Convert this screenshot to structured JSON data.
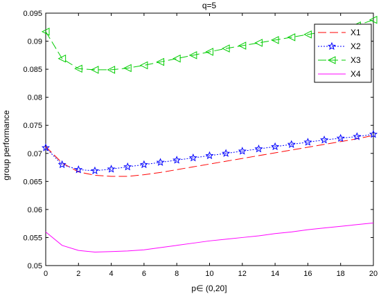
{
  "chart_data": {
    "type": "line",
    "title": "q=5",
    "xlabel": "p∈ (0,20]",
    "ylabel": "group performance",
    "xlim": [
      0,
      20
    ],
    "ylim": [
      0.05,
      0.095
    ],
    "xticks": [
      "0",
      "2",
      "4",
      "6",
      "8",
      "10",
      "12",
      "14",
      "16",
      "18",
      "20"
    ],
    "yticks": [
      "0.05",
      "0.055",
      "0.06",
      "0.065",
      "0.07",
      "0.075",
      "0.08",
      "0.085",
      "0.09",
      "0.095"
    ],
    "grid": false,
    "legend_position": "top-right",
    "x": [
      0,
      1,
      2,
      3,
      4,
      5,
      6,
      7,
      8,
      9,
      10,
      11,
      12,
      13,
      14,
      15,
      16,
      17,
      18,
      19,
      20
    ],
    "series": [
      {
        "name": "X1",
        "color": "#ff0000",
        "line_style": "dashed",
        "marker": "none",
        "values": [
          0.0712,
          0.0683,
          0.0667,
          0.0661,
          0.0659,
          0.0659,
          0.0662,
          0.0666,
          0.0671,
          0.0676,
          0.0681,
          0.0686,
          0.0691,
          0.0696,
          0.0701,
          0.0706,
          0.0711,
          0.0716,
          0.0721,
          0.0726,
          0.0732
        ]
      },
      {
        "name": "X2",
        "color": "#0000ff",
        "line_style": "dotted",
        "marker": "star",
        "values": [
          0.071,
          0.068,
          0.0671,
          0.0669,
          0.0672,
          0.0676,
          0.068,
          0.0684,
          0.0688,
          0.0692,
          0.0696,
          0.07,
          0.0704,
          0.0708,
          0.0712,
          0.0716,
          0.072,
          0.0724,
          0.0727,
          0.073,
          0.0734
        ]
      },
      {
        "name": "X3",
        "color": "#00cc00",
        "line_style": "dashed",
        "marker": "triangle-left",
        "values": [
          0.0917,
          0.0869,
          0.0851,
          0.0849,
          0.0849,
          0.0852,
          0.0857,
          0.0863,
          0.0869,
          0.0875,
          0.0881,
          0.0887,
          0.0892,
          0.0897,
          0.0902,
          0.0907,
          0.0912,
          0.0917,
          0.0922,
          0.0928,
          0.0938
        ]
      },
      {
        "name": "X4",
        "color": "#ff00ff",
        "line_style": "solid",
        "marker": "none",
        "values": [
          0.056,
          0.0536,
          0.0527,
          0.0524,
          0.0525,
          0.0526,
          0.0528,
          0.0532,
          0.0536,
          0.054,
          0.0544,
          0.0547,
          0.055,
          0.0553,
          0.0557,
          0.056,
          0.0564,
          0.0567,
          0.057,
          0.0573,
          0.0576
        ]
      }
    ]
  }
}
